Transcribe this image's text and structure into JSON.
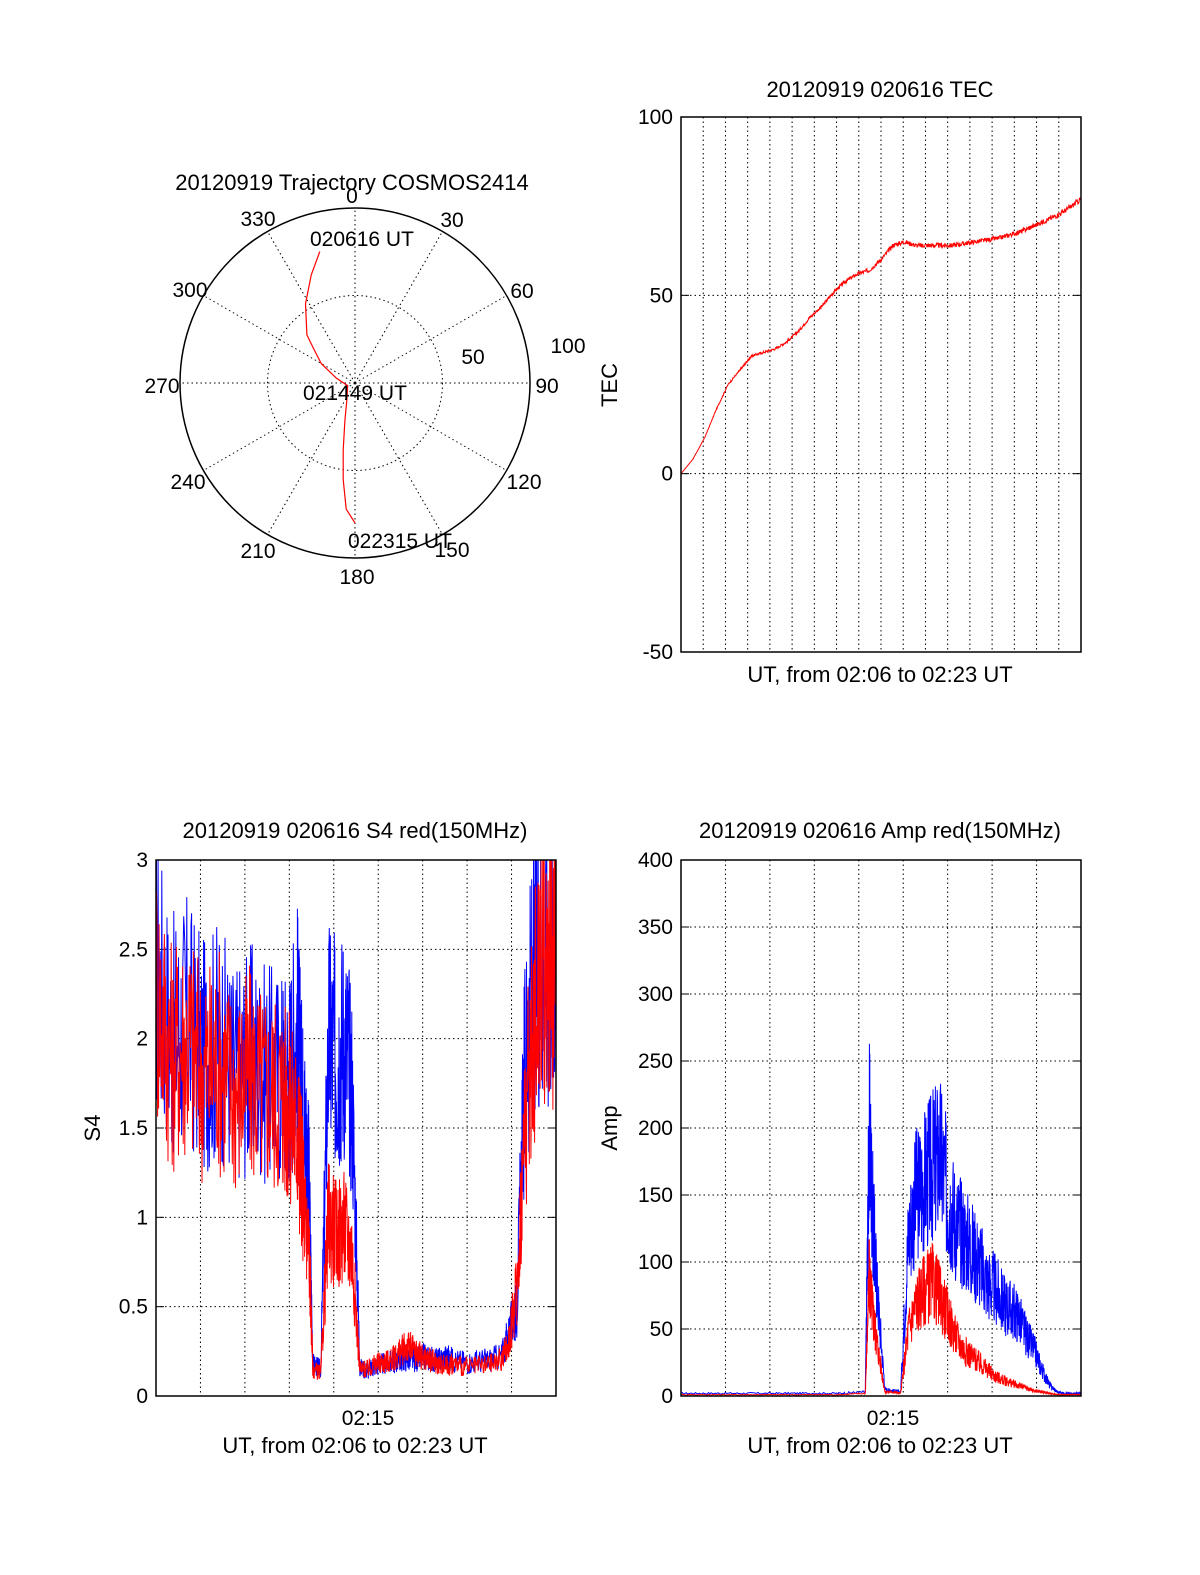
{
  "colors": {
    "red": "#ff0000",
    "blue": "#0000ff",
    "axis": "#000000",
    "grid": "#000000"
  },
  "chart_data": [
    {
      "type": "polar",
      "title": "20120919 Trajectory COSMOS2414",
      "azimuth_labels": [
        "0",
        "30",
        "60",
        "90",
        "120",
        "150",
        "180",
        "210",
        "240",
        "270",
        "300",
        "330"
      ],
      "radial_labels": [
        "50",
        "100"
      ],
      "annotations": [
        "020616 UT",
        "021449 UT",
        "022315 UT"
      ],
      "series": [
        {
          "color": "red",
          "points_az_el": [
            [
              345,
              20
            ],
            [
              338,
              30
            ],
            [
              328,
              42
            ],
            [
              315,
              55
            ],
            [
              310,
              62
            ],
            [
              300,
              70
            ],
            [
              285,
              80
            ],
            [
              250,
              86
            ],
            [
              205,
              80
            ],
            [
              195,
              70
            ],
            [
              190,
              55
            ],
            [
              187,
              40
            ],
            [
              184,
              25
            ],
            [
              180,
              18
            ]
          ]
        }
      ]
    },
    {
      "type": "line",
      "title": "20120919 020616 TEC",
      "xlabel": "UT, from 02:06 to 02:23 UT",
      "ylabel": "TEC",
      "xlim": [
        0,
        1020
      ],
      "ylim": [
        -50,
        100
      ],
      "yticks": [
        "-50",
        "0",
        "50",
        "100"
      ],
      "grid": true,
      "series": [
        {
          "color": "red",
          "x": [
            0,
            30,
            60,
            90,
            120,
            150,
            165,
            180,
            210,
            240,
            270,
            300,
            330,
            360,
            390,
            420,
            450,
            480,
            510,
            540,
            570,
            600,
            630,
            660,
            690,
            720,
            750,
            780,
            810,
            840,
            870,
            900,
            930,
            960,
            990,
            1020
          ],
          "y": [
            0,
            4,
            10,
            18,
            25,
            29,
            31,
            33,
            34,
            35,
            37,
            40,
            44,
            47,
            51,
            54,
            56,
            57,
            60,
            64,
            65,
            64,
            64,
            64,
            64,
            64.5,
            65,
            65.5,
            66,
            67,
            68,
            69.5,
            71,
            72.5,
            74.5,
            77
          ]
        }
      ]
    },
    {
      "type": "line",
      "title": "20120919 020616 S4 red(150MHz)",
      "xlabel": "UT, from 02:06 to 02:23 UT",
      "ylabel": "S4",
      "xlim": [
        0,
        1020
      ],
      "ylim": [
        0,
        3
      ],
      "xticks": [
        "02:15"
      ],
      "yticks": [
        "0",
        "0.5",
        "1",
        "1.5",
        "2",
        "2.5",
        "3"
      ],
      "grid": true,
      "series": [
        {
          "color": "blue",
          "x": [
            0,
            40,
            80,
            120,
            160,
            200,
            240,
            280,
            320,
            340,
            360,
            370,
            380,
            390,
            400,
            420,
            440,
            460,
            480,
            500,
            520,
            540,
            560,
            580,
            600,
            620,
            640,
            660,
            680,
            700,
            720,
            740,
            760,
            800,
            840,
            880,
            900,
            920,
            940,
            960,
            980,
            1000,
            1020
          ],
          "y": [
            2.4,
            2.0,
            2.1,
            1.9,
            2.0,
            1.8,
            1.9,
            1.8,
            1.8,
            1.8,
            2.1,
            1.7,
            1.5,
            1.2,
            0.18,
            0.15,
            2.0,
            1.9,
            2.0,
            1.7,
            0.16,
            0.14,
            0.17,
            0.18,
            0.19,
            0.2,
            0.21,
            0.2,
            0.22,
            0.21,
            0.2,
            0.22,
            0.2,
            0.19,
            0.2,
            0.22,
            0.35,
            0.5,
            1.8,
            2.3,
            2.5,
            2.4,
            2.6
          ]
        },
        {
          "color": "red",
          "x": [
            0,
            40,
            80,
            120,
            160,
            200,
            240,
            280,
            320,
            340,
            360,
            370,
            380,
            390,
            400,
            420,
            440,
            460,
            480,
            500,
            520,
            540,
            560,
            580,
            600,
            620,
            640,
            660,
            680,
            700,
            720,
            740,
            760,
            800,
            840,
            880,
            900,
            920,
            940,
            960,
            980,
            1000,
            1020
          ],
          "y": [
            2.3,
            1.9,
            2.0,
            1.8,
            1.9,
            1.7,
            1.8,
            1.7,
            1.7,
            1.6,
            1.5,
            1.3,
            1.0,
            0.85,
            0.15,
            0.13,
            1.0,
            0.9,
            0.95,
            0.8,
            0.15,
            0.15,
            0.18,
            0.19,
            0.2,
            0.24,
            0.28,
            0.25,
            0.22,
            0.2,
            0.18,
            0.17,
            0.18,
            0.16,
            0.17,
            0.2,
            0.3,
            0.6,
            1.5,
            2.0,
            2.5,
            2.4,
            2.5
          ]
        }
      ]
    },
    {
      "type": "line",
      "title": "20120919 020616 Amp red(150MHz)",
      "xlabel": "UT, from 02:06 to 02:23 UT",
      "ylabel": "Amp",
      "xlim": [
        0,
        1020
      ],
      "ylim": [
        0,
        400
      ],
      "xticks": [
        "02:15"
      ],
      "yticks": [
        "0",
        "50",
        "100",
        "150",
        "200",
        "250",
        "300",
        "350",
        "400"
      ],
      "grid": true,
      "series": [
        {
          "color": "blue",
          "x": [
            0,
            100,
            200,
            300,
            400,
            470,
            480,
            490,
            500,
            520,
            540,
            560,
            580,
            600,
            620,
            640,
            660,
            680,
            700,
            720,
            740,
            760,
            780,
            800,
            820,
            840,
            860,
            880,
            900,
            920,
            940,
            960,
            980,
            1000,
            1020
          ],
          "y": [
            2,
            2,
            2,
            2,
            2,
            3,
            200,
            130,
            80,
            5,
            4,
            3,
            120,
            150,
            160,
            170,
            180,
            150,
            130,
            120,
            110,
            100,
            85,
            80,
            70,
            65,
            60,
            45,
            35,
            20,
            8,
            3,
            2,
            2,
            2
          ]
        },
        {
          "color": "red",
          "x": [
            0,
            100,
            200,
            300,
            400,
            470,
            480,
            490,
            500,
            520,
            540,
            560,
            580,
            600,
            620,
            640,
            660,
            680,
            700,
            720,
            740,
            760,
            780,
            800,
            820,
            840,
            860,
            880,
            900,
            920,
            940,
            960,
            980,
            1000,
            1020
          ],
          "y": [
            1,
            1,
            1,
            1,
            1,
            2,
            90,
            60,
            40,
            3,
            3,
            2,
            50,
            70,
            80,
            85,
            75,
            60,
            45,
            35,
            30,
            25,
            20,
            15,
            12,
            10,
            8,
            6,
            4,
            3,
            2,
            1,
            1,
            1,
            1
          ]
        }
      ]
    }
  ]
}
